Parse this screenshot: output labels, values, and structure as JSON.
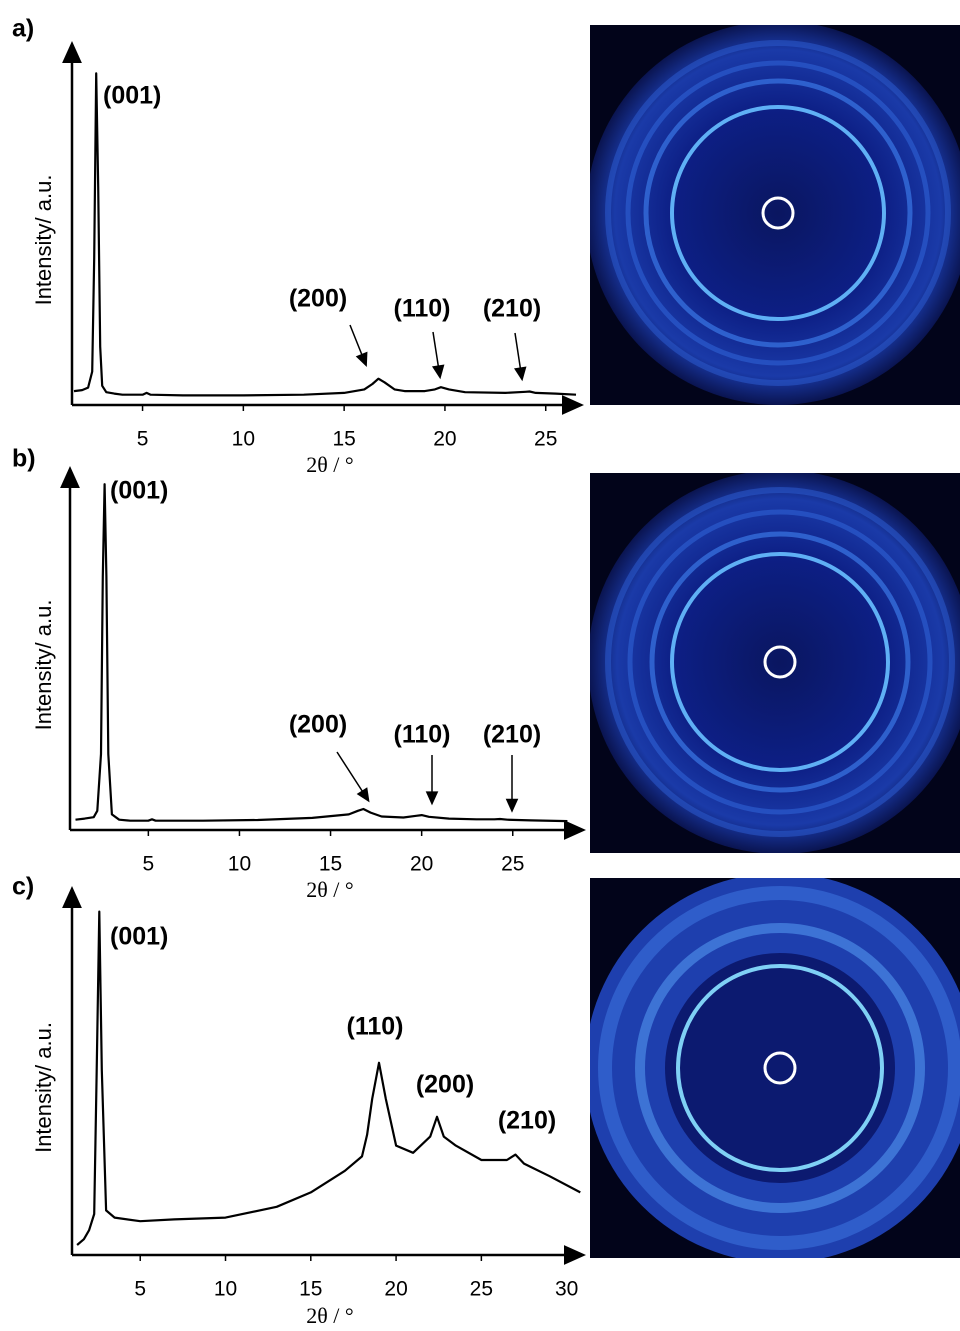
{
  "chart_data": [
    {
      "type": "line",
      "panel_label": "a)",
      "y_label": "Intensity/ a.u.",
      "x_label": "2θ / °",
      "xlim": [
        1.5,
        26.7
      ],
      "ylim": [
        0,
        100
      ],
      "xticks": [
        5,
        10,
        15,
        20,
        25
      ],
      "color": "#000000",
      "x": [
        1.6,
        2.0,
        2.3,
        2.5,
        2.6,
        2.7,
        2.8,
        2.9,
        3.0,
        3.2,
        3.6,
        4,
        5,
        5.2,
        5.4,
        7,
        10,
        13,
        15,
        16,
        16.4,
        16.7,
        17,
        17.5,
        18,
        19,
        19.5,
        19.8,
        20.2,
        21,
        23,
        24,
        24.2,
        24.5,
        25.5,
        26.5
      ],
      "values": [
        2.5,
        2.8,
        3.5,
        8,
        40,
        92,
        60,
        15,
        4,
        2.2,
        1.8,
        1.5,
        1.5,
        2.0,
        1.5,
        1.3,
        1.3,
        1.5,
        2,
        3,
        4.5,
        6,
        5,
        3,
        2.5,
        2.5,
        3,
        3.6,
        3,
        2.2,
        2,
        2.3,
        2.4,
        2,
        1.8,
        1.5
      ],
      "annotations": [
        "(001)",
        "(200)",
        "(110)",
        "(210)"
      ]
    },
    {
      "type": "line",
      "panel_label": "b)",
      "y_label": "Intensity/ a.u.",
      "x_label": "2θ / °",
      "xlim": [
        0.7,
        28.8
      ],
      "ylim": [
        0,
        100
      ],
      "xticks": [
        5,
        10,
        15,
        20,
        25
      ],
      "color": "#000000",
      "x": [
        1.0,
        1.5,
        2.0,
        2.2,
        2.4,
        2.5,
        2.6,
        2.7,
        2.8,
        3.0,
        3.4,
        4,
        5,
        5.2,
        5.4,
        8,
        11,
        14,
        16,
        16.5,
        16.8,
        17.2,
        17.8,
        19,
        19.7,
        20,
        20.4,
        21.5,
        23,
        24,
        24.3,
        24.7,
        26,
        28
      ],
      "values": [
        1.5,
        1.8,
        2.2,
        4,
        20,
        70,
        96,
        70,
        20,
        3,
        1.5,
        1.2,
        1.2,
        1.6,
        1.2,
        1.2,
        1.4,
        2,
        3,
        4,
        4.5,
        3.5,
        2.4,
        2.1,
        2.6,
        2.8,
        2.3,
        1.8,
        1.6,
        1.6,
        1.7,
        1.5,
        1.3,
        1.1
      ],
      "annotations": [
        "(001)",
        "(200)",
        "(110)",
        "(210)"
      ]
    },
    {
      "type": "line",
      "panel_label": "c)",
      "y_label": "Intensity/ a.u.",
      "x_label": "2θ / °",
      "xlim": [
        1.0,
        30.9
      ],
      "ylim": [
        0,
        100
      ],
      "xticks": [
        5,
        10,
        15,
        20,
        25,
        30
      ],
      "color": "#000000",
      "x": [
        1.3,
        1.7,
        2.0,
        2.3,
        2.45,
        2.6,
        2.75,
        3.0,
        3.5,
        5,
        7,
        10,
        13,
        15,
        17,
        18,
        18.3,
        18.6,
        19,
        19.4,
        20,
        21,
        22,
        22.4,
        22.8,
        23.5,
        25,
        26.5,
        27,
        27.5,
        29,
        30.8
      ],
      "values": [
        1.4,
        3,
        5.5,
        10,
        50,
        94,
        50,
        11,
        9,
        8,
        8.5,
        9,
        12,
        16,
        22,
        26,
        32,
        42,
        52,
        42,
        29,
        27,
        31.5,
        37,
        31.5,
        29,
        25,
        25,
        26.5,
        24,
        20.5,
        16
      ],
      "annotations": [
        "(001)",
        "(110)",
        "(200)",
        "(210)"
      ]
    }
  ]
}
